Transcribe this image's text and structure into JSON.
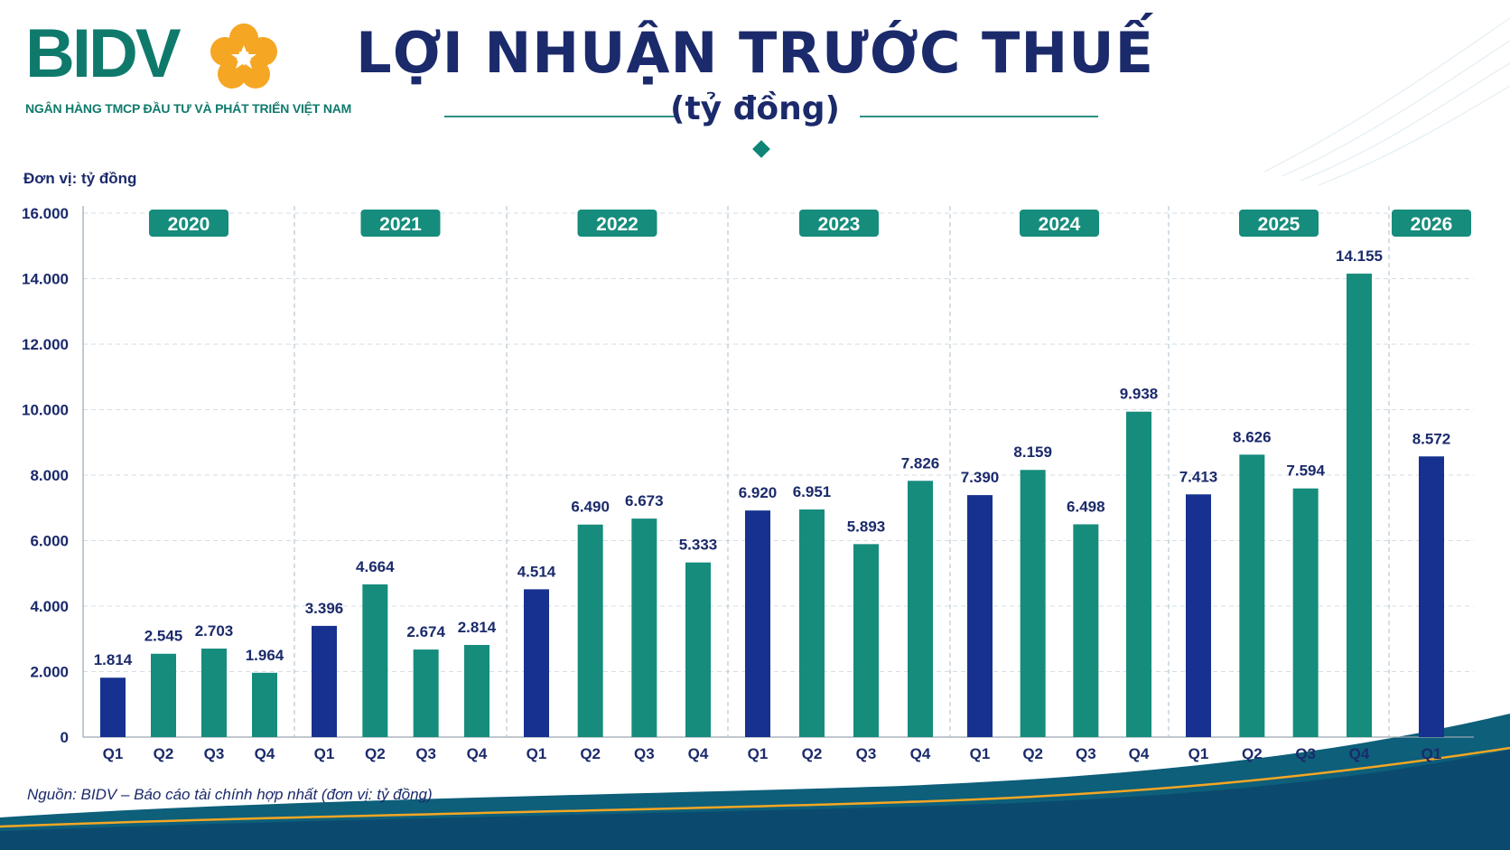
{
  "brand": {
    "logo_text": "BIDV",
    "tagline": "NGÂN HÀNG TMCP ĐẦU TƯ VÀ PHÁT TRIỂN VIỆT NAM"
  },
  "header": {
    "title": "LỢI NHUẬN TRƯỚC THUẾ",
    "subtitle": "(tỷ đồng)"
  },
  "unit_label": "Đơn vị: tỷ đồng",
  "source": "Nguồn: BIDV – Báo cáo tài chính hợp nhất (đơn vị: tỷ đồng)",
  "colors": {
    "q1": "#16318f",
    "other": "#168c7c",
    "year_badge": "#168c7c",
    "text": "#1b2a6b",
    "logo_orange": "#f5a623"
  },
  "chart_data": {
    "type": "bar",
    "ylim": [
      0,
      16000
    ],
    "yticks": [
      "0",
      "2.000",
      "4.000",
      "6.000",
      "8.000",
      "10.000",
      "12.000",
      "14.000",
      "16.000"
    ],
    "grid": true,
    "groups": [
      {
        "year": "2020",
        "quarters": [
          "Q1",
          "Q2",
          "Q3",
          "Q4"
        ],
        "values": [
          1814,
          2545,
          2703,
          1964
        ],
        "labels": [
          "1.814",
          "2.545",
          "2.703",
          "1.964"
        ]
      },
      {
        "year": "2021",
        "quarters": [
          "Q1",
          "Q2",
          "Q3",
          "Q4"
        ],
        "values": [
          3396,
          4664,
          2674,
          2814
        ],
        "labels": [
          "3.396",
          "4.664",
          "2.674",
          "2.814"
        ]
      },
      {
        "year": "2022",
        "quarters": [
          "Q1",
          "Q2",
          "Q3",
          "Q4"
        ],
        "values": [
          4514,
          6490,
          6673,
          5333
        ],
        "labels": [
          "4.514",
          "6.490",
          "6.673",
          "5.333"
        ]
      },
      {
        "year": "2023",
        "quarters": [
          "Q1",
          "Q2",
          "Q3",
          "Q4"
        ],
        "values": [
          6920,
          6951,
          5893,
          7826
        ],
        "labels": [
          "6.920",
          "6.951",
          "5.893",
          "7.826"
        ]
      },
      {
        "year": "2024",
        "quarters": [
          "Q1",
          "Q2",
          "Q3",
          "Q4"
        ],
        "values": [
          7390,
          8159,
          6498,
          9938
        ],
        "labels": [
          "7.390",
          "8.159",
          "6.498",
          "9.938"
        ]
      },
      {
        "year": "2025",
        "quarters": [
          "Q1",
          "Q2",
          "Q3",
          "Q4"
        ],
        "values": [
          7413,
          8626,
          7594,
          14155
        ],
        "labels": [
          "7.413",
          "8.626",
          "7.594",
          "14.155"
        ]
      },
      {
        "year": "2026",
        "quarters": [
          "Q1"
        ],
        "values": [
          8572
        ],
        "labels": [
          "8.572"
        ]
      }
    ]
  }
}
